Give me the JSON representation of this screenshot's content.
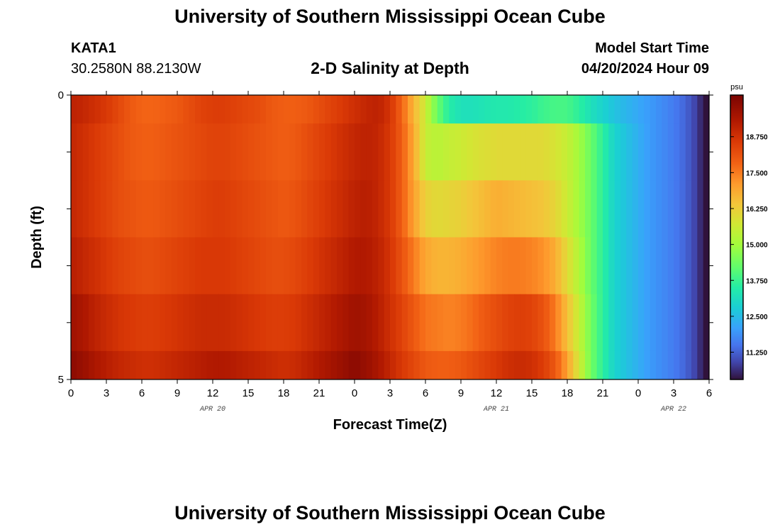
{
  "header": {
    "title": "University of Southern Mississippi Ocean Cube",
    "station": "KATA1",
    "coordinates": "30.2580N  88.2130W",
    "subtitle": "2-D Salinity at Depth",
    "model_label": "Model Start Time",
    "model_time": "04/20/2024 Hour 09"
  },
  "footer": {
    "title": "University of Southern Mississippi Ocean Cube"
  },
  "chart_data": {
    "type": "heatmap",
    "xlabel": "Forecast Time(Z)",
    "ylabel": "Depth (ft)",
    "xlim": [
      0,
      54
    ],
    "ylim": [
      0,
      5
    ],
    "y_reversed": true,
    "x_tick_positions": [
      0,
      3,
      6,
      9,
      12,
      15,
      18,
      21,
      24,
      27,
      30,
      33,
      36,
      39,
      42,
      45,
      48,
      51,
      54
    ],
    "x_tick_labels": [
      "0",
      "3",
      "6",
      "9",
      "12",
      "15",
      "18",
      "21",
      "0",
      "3",
      "6",
      "9",
      "12",
      "15",
      "18",
      "21",
      "0",
      "3",
      "6"
    ],
    "date_labels": [
      {
        "x": 12,
        "text": "APR 20"
      },
      {
        "x": 36,
        "text": "APR 21"
      },
      {
        "x": 51,
        "text": "APR 22"
      }
    ],
    "y_tick_positions": [
      0,
      1,
      2,
      3,
      4,
      5
    ],
    "y_tick_labels": [
      {
        "y": 0,
        "text": "0"
      },
      {
        "y": 5,
        "text": "5"
      }
    ],
    "depth_layers": [
      [
        0,
        0.5
      ],
      [
        0.5,
        1.5
      ],
      [
        1.5,
        2.5
      ],
      [
        2.5,
        3.5
      ],
      [
        3.5,
        4.5
      ],
      [
        4.5,
        5
      ]
    ],
    "time_control_points": [
      0,
      1,
      2,
      3,
      4,
      5,
      6,
      7,
      8,
      9,
      10,
      11,
      12,
      13,
      14,
      15,
      16,
      17,
      18,
      19,
      20,
      21,
      22,
      23,
      24,
      25,
      26,
      27,
      28,
      29,
      30,
      31,
      32,
      33,
      34,
      35,
      36,
      37,
      38,
      39,
      40,
      41,
      42,
      43,
      44,
      45,
      46,
      47,
      48,
      49,
      50,
      51,
      52,
      53,
      54
    ],
    "salinity": [
      [
        19.1,
        19.0,
        18.8,
        18.6,
        18.3,
        18.0,
        17.8,
        17.8,
        17.9,
        18.0,
        18.2,
        18.4,
        18.5,
        18.5,
        18.4,
        18.3,
        18.2,
        18.0,
        17.9,
        17.9,
        18.0,
        18.2,
        18.4,
        18.6,
        18.8,
        19.0,
        19.1,
        18.7,
        17.8,
        16.7,
        15.6,
        14.3,
        13.5,
        13.2,
        13.2,
        13.3,
        13.4,
        13.4,
        13.5,
        13.6,
        13.8,
        13.9,
        13.9,
        13.6,
        13.2,
        12.9,
        12.6,
        12.4,
        12.2,
        12.0,
        11.8,
        11.6,
        11.3,
        10.8,
        10.0
      ],
      [
        19.0,
        18.8,
        18.6,
        18.4,
        18.2,
        18.0,
        17.9,
        17.9,
        18.0,
        18.1,
        18.2,
        18.3,
        18.4,
        18.4,
        18.3,
        18.2,
        18.1,
        18.0,
        17.9,
        18.0,
        18.2,
        18.4,
        18.6,
        18.8,
        19.0,
        19.1,
        19.0,
        18.6,
        17.9,
        16.9,
        15.5,
        15.3,
        15.5,
        15.6,
        15.8,
        15.9,
        16.0,
        16.0,
        16.0,
        16.0,
        16.0,
        15.8,
        15.5,
        15.0,
        14.3,
        13.6,
        12.9,
        12.6,
        12.3,
        12.0,
        11.8,
        11.6,
        11.3,
        10.8,
        10.0
      ],
      [
        19.0,
        18.8,
        18.6,
        18.4,
        18.2,
        18.1,
        18.0,
        18.0,
        18.1,
        18.2,
        18.3,
        18.4,
        18.5,
        18.5,
        18.4,
        18.3,
        18.2,
        18.1,
        18.0,
        18.1,
        18.3,
        18.5,
        18.7,
        18.9,
        19.1,
        19.2,
        19.0,
        18.6,
        17.9,
        17.0,
        16.2,
        16.0,
        16.1,
        16.2,
        16.4,
        16.6,
        16.8,
        16.7,
        16.6,
        16.5,
        16.4,
        16.1,
        15.6,
        15.0,
        14.3,
        13.6,
        12.9,
        12.6,
        12.3,
        12.0,
        11.8,
        11.6,
        11.3,
        10.8,
        10.0
      ],
      [
        19.2,
        19.0,
        18.8,
        18.6,
        18.4,
        18.3,
        18.2,
        18.2,
        18.3,
        18.4,
        18.5,
        18.6,
        18.6,
        18.6,
        18.5,
        18.4,
        18.3,
        18.2,
        18.2,
        18.3,
        18.5,
        18.7,
        18.9,
        19.1,
        19.3,
        19.3,
        19.1,
        18.7,
        18.1,
        17.5,
        16.9,
        16.7,
        16.7,
        16.8,
        17.0,
        17.2,
        17.4,
        17.5,
        17.5,
        17.4,
        17.2,
        16.8,
        16.0,
        15.2,
        14.3,
        13.6,
        12.9,
        12.6,
        12.3,
        12.0,
        11.8,
        11.6,
        11.3,
        10.8,
        10.0
      ],
      [
        19.6,
        19.4,
        19.1,
        18.9,
        18.7,
        18.6,
        18.5,
        18.5,
        18.6,
        18.7,
        18.8,
        18.9,
        18.9,
        18.9,
        18.8,
        18.7,
        18.6,
        18.5,
        18.5,
        18.6,
        18.8,
        19.0,
        19.2,
        19.4,
        19.6,
        19.5,
        19.2,
        18.8,
        18.4,
        18.0,
        17.6,
        17.5,
        17.4,
        17.5,
        17.7,
        18.0,
        18.2,
        18.4,
        18.5,
        18.4,
        18.1,
        17.5,
        16.5,
        15.5,
        14.4,
        13.6,
        12.9,
        12.6,
        12.3,
        12.0,
        11.8,
        11.6,
        11.3,
        10.8,
        10.0
      ],
      [
        19.9,
        19.7,
        19.4,
        19.2,
        19.0,
        18.9,
        18.8,
        18.8,
        18.9,
        19.0,
        19.1,
        19.2,
        19.3,
        19.3,
        19.2,
        19.1,
        19.0,
        18.9,
        18.8,
        18.9,
        19.1,
        19.3,
        19.5,
        19.7,
        19.9,
        19.7,
        19.4,
        19.0,
        18.6,
        18.3,
        18.0,
        17.9,
        17.9,
        18.0,
        18.2,
        18.4,
        18.6,
        18.8,
        18.9,
        18.8,
        18.5,
        18.0,
        17.0,
        15.7,
        14.4,
        13.6,
        12.9,
        12.6,
        12.3,
        12.0,
        11.8,
        11.6,
        11.3,
        10.8,
        10.0
      ]
    ],
    "colorbar": {
      "unit": "psu",
      "min": 10.3,
      "max": 20.2,
      "tick_values": [
        11.25,
        12.5,
        13.75,
        15.0,
        16.25,
        17.5,
        18.75
      ],
      "tick_labels": [
        "11.250",
        "12.500",
        "13.750",
        "15.000",
        "16.250",
        "17.500",
        "18.750"
      ]
    },
    "colormap": [
      [
        10.3,
        "#30123b"
      ],
      [
        10.9,
        "#4145ab"
      ],
      [
        11.5,
        "#4675ed"
      ],
      [
        12.1,
        "#39a2fc"
      ],
      [
        12.8,
        "#1bcfd4"
      ],
      [
        13.5,
        "#24eca6"
      ],
      [
        14.2,
        "#61fc6c"
      ],
      [
        15.0,
        "#a4fc3b"
      ],
      [
        15.7,
        "#d1e834"
      ],
      [
        16.4,
        "#f3c63a"
      ],
      [
        17.1,
        "#fe9b2d"
      ],
      [
        17.8,
        "#f36315"
      ],
      [
        18.6,
        "#d93806"
      ],
      [
        19.3,
        "#b11901"
      ],
      [
        20.2,
        "#7a0402"
      ]
    ]
  }
}
